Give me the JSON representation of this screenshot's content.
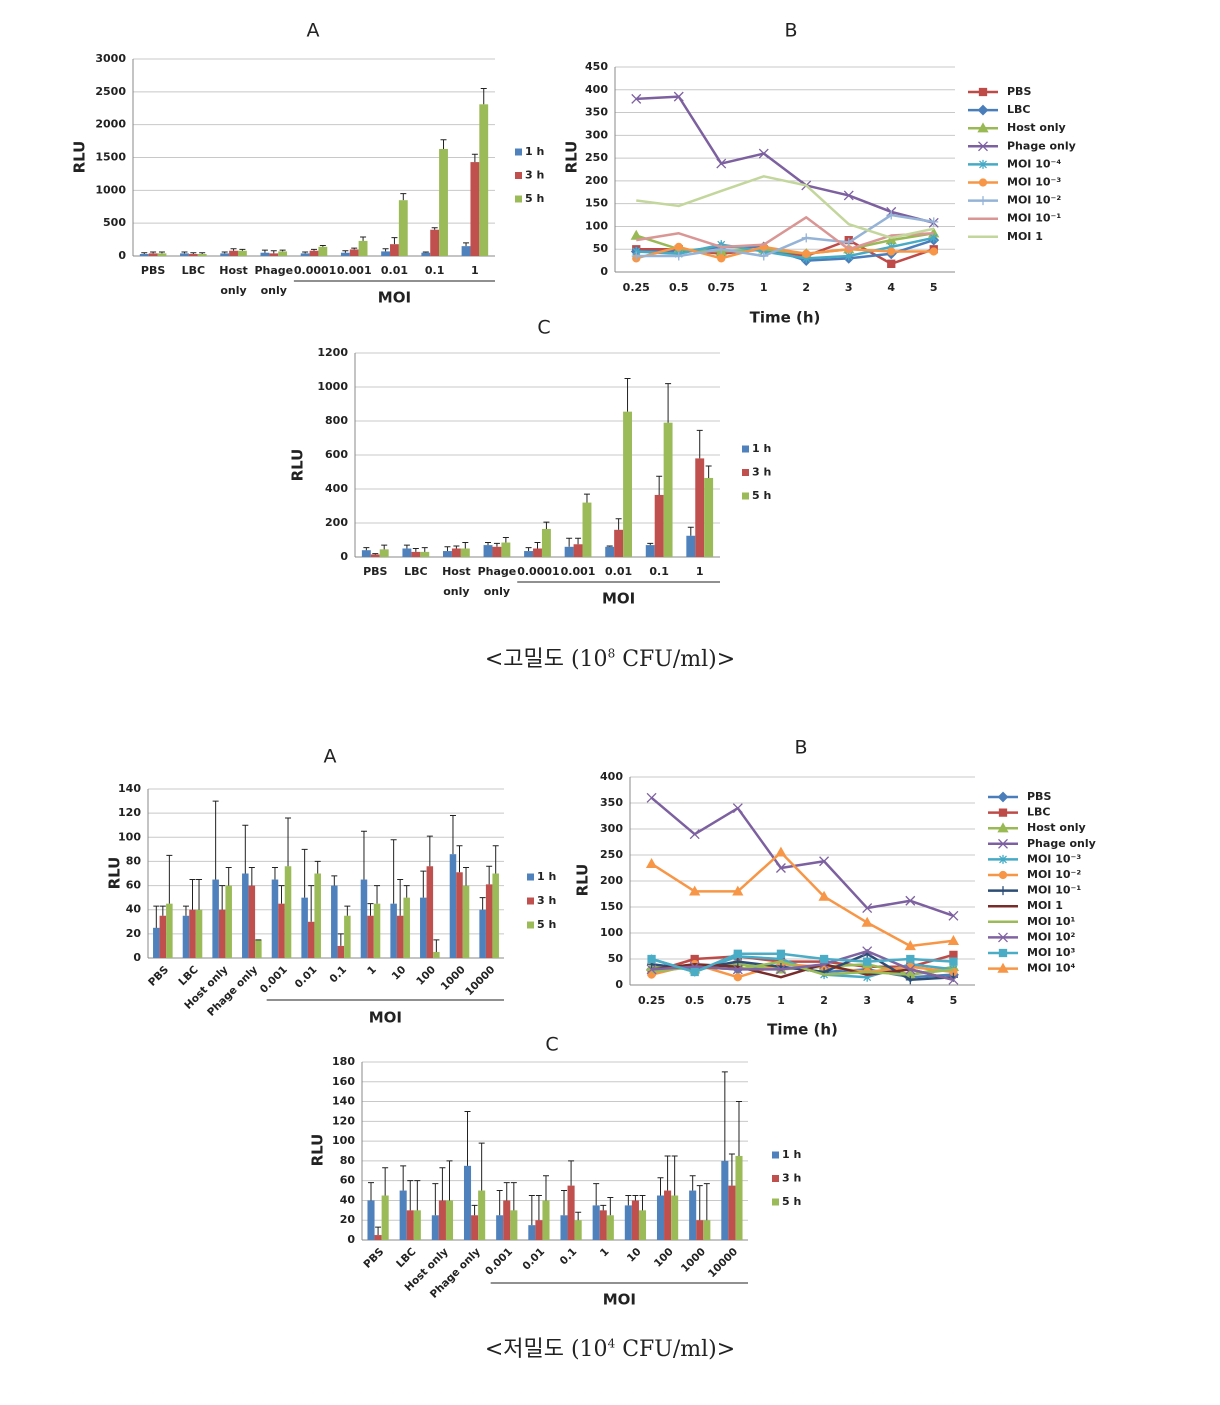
{
  "chart_data": [
    {
      "type": "bar",
      "title": "A",
      "ylabel": "RLU",
      "xlabel": "MOI",
      "categories": [
        "PBS",
        "LBC",
        "Host only",
        "Phage only",
        "0.0001",
        "0.001",
        "0.01",
        "0.1",
        "1"
      ],
      "ylim": [
        0,
        3000
      ],
      "yticks": [
        0,
        500,
        1000,
        1500,
        2000,
        2500,
        3000
      ],
      "grid": true,
      "series": [
        {
          "name": "1 h",
          "color": "#4f81bd",
          "values": [
            30,
            40,
            40,
            50,
            40,
            50,
            70,
            50,
            150
          ],
          "errors": [
            20,
            20,
            20,
            40,
            20,
            30,
            40,
            10,
            50
          ]
        },
        {
          "name": "3 h",
          "color": "#c0504d",
          "values": [
            40,
            30,
            80,
            40,
            80,
            100,
            180,
            400,
            1430
          ],
          "errors": [
            20,
            20,
            30,
            40,
            20,
            20,
            100,
            30,
            120
          ]
        },
        {
          "name": "5 h",
          "color": "#9bbb59",
          "values": [
            40,
            30,
            80,
            70,
            140,
            230,
            850,
            1630,
            2310
          ],
          "errors": [
            20,
            20,
            20,
            20,
            20,
            60,
            100,
            140,
            240
          ]
        }
      ]
    },
    {
      "type": "line",
      "title": "B",
      "ylabel": "RLU",
      "xlabel": "Time (h)",
      "categories": [
        "0.25",
        "0.5",
        "0.75",
        "1",
        "2",
        "3",
        "4",
        "5"
      ],
      "ylim": [
        0,
        450
      ],
      "yticks": [
        0,
        50,
        100,
        150,
        200,
        250,
        300,
        350,
        400,
        450
      ],
      "grid": true,
      "series": [
        {
          "name": "PBS",
          "color": "#be4b48",
          "marker": "square",
          "values": [
            50,
            50,
            40,
            50,
            35,
            70,
            18,
            50
          ]
        },
        {
          "name": "LBC",
          "color": "#4a7ebb",
          "marker": "diamond",
          "values": [
            45,
            45,
            55,
            55,
            25,
            30,
            40,
            70
          ]
        },
        {
          "name": "Host only",
          "color": "#98b954",
          "marker": "triangle",
          "values": [
            80,
            50,
            45,
            50,
            40,
            50,
            70,
            85
          ]
        },
        {
          "name": "Phage only",
          "color": "#7d60a0",
          "marker": "x",
          "values": [
            380,
            385,
            238,
            260,
            190,
            168,
            132,
            108
          ]
        },
        {
          "name": "MOI 10⁻⁴",
          "color": "#46aac5",
          "marker": "asterisk",
          "values": [
            45,
            40,
            60,
            45,
            30,
            35,
            55,
            75
          ]
        },
        {
          "name": "MOI 10⁻³",
          "color": "#f79646",
          "marker": "circle",
          "values": [
            30,
            55,
            30,
            55,
            40,
            50,
            45,
            45
          ]
        },
        {
          "name": "MOI 10⁻²",
          "color": "#95b3d7",
          "marker": "plus",
          "values": [
            35,
            35,
            50,
            35,
            75,
            65,
            125,
            110
          ]
        },
        {
          "name": "MOI 10⁻¹",
          "color": "#d99694",
          "marker": "none",
          "values": [
            70,
            85,
            55,
            60,
            120,
            50,
            80,
            85
          ]
        },
        {
          "name": "MOI 1",
          "color": "#c3d69b",
          "marker": "none",
          "values": [
            157,
            145,
            178,
            210,
            190,
            105,
            75,
            95
          ]
        }
      ]
    },
    {
      "type": "bar",
      "title": "C",
      "ylabel": "RLU",
      "xlabel": "MOI",
      "categories": [
        "PBS",
        "LBC",
        "Host only",
        "Phage only",
        "0.0001",
        "0.001",
        "0.01",
        "0.1",
        "1"
      ],
      "ylim": [
        0,
        1200
      ],
      "yticks": [
        0,
        200,
        400,
        600,
        800,
        1000,
        1200
      ],
      "grid": true,
      "series": [
        {
          "name": "1 h",
          "color": "#4f81bd",
          "values": [
            40,
            50,
            35,
            70,
            35,
            60,
            60,
            70,
            125
          ],
          "errors": [
            15,
            20,
            25,
            15,
            20,
            50,
            5,
            10,
            50
          ]
        },
        {
          "name": "3 h",
          "color": "#c0504d",
          "values": [
            15,
            30,
            50,
            60,
            50,
            75,
            160,
            365,
            580
          ],
          "errors": [
            5,
            20,
            15,
            20,
            35,
            35,
            65,
            110,
            165
          ]
        },
        {
          "name": "5 h",
          "color": "#9bbb59",
          "values": [
            45,
            30,
            50,
            85,
            165,
            320,
            855,
            790,
            465
          ],
          "errors": [
            25,
            25,
            35,
            30,
            40,
            50,
            195,
            230,
            70
          ]
        }
      ]
    },
    {
      "type": "bar",
      "title": "A",
      "ylabel": "RLU",
      "xlabel": "MOI",
      "categories": [
        "PBS",
        "LBC",
        "Host only",
        "Phage only",
        "0.001",
        "0.01",
        "0.1",
        "1",
        "10",
        "100",
        "1000",
        "10000"
      ],
      "ylim": [
        0,
        140
      ],
      "yticks": [
        0,
        20,
        40,
        60,
        80,
        100,
        120,
        140
      ],
      "grid": true,
      "series": [
        {
          "name": "1 h",
          "color": "#4f81bd",
          "values": [
            25,
            35,
            65,
            70,
            65,
            50,
            60,
            65,
            45,
            50,
            86,
            40
          ],
          "errors": [
            18,
            8,
            65,
            40,
            10,
            40,
            8,
            40,
            53,
            22,
            32,
            10
          ]
        },
        {
          "name": "3 h",
          "color": "#c0504d",
          "values": [
            35,
            40,
            40,
            60,
            45,
            30,
            10,
            35,
            35,
            76,
            71,
            61
          ],
          "errors": [
            8,
            25,
            20,
            15,
            15,
            30,
            10,
            10,
            30,
            25,
            22,
            15
          ]
        },
        {
          "name": "5 h",
          "color": "#9bbb59",
          "values": [
            45,
            40,
            60,
            15,
            76,
            70,
            35,
            45,
            50,
            5,
            60,
            70
          ],
          "errors": [
            40,
            25,
            15,
            0,
            40,
            10,
            8,
            15,
            10,
            10,
            15,
            23
          ]
        }
      ]
    },
    {
      "type": "line",
      "title": "B",
      "ylabel": "RLU",
      "xlabel": "Time (h)",
      "categories": [
        "0.25",
        "0.5",
        "0.75",
        "1",
        "2",
        "3",
        "4",
        "5"
      ],
      "ylim": [
        0,
        400
      ],
      "yticks": [
        0,
        50,
        100,
        150,
        200,
        250,
        300,
        350,
        400
      ],
      "grid": true,
      "series": [
        {
          "name": "PBS",
          "color": "#4a7ebb",
          "marker": "diamond",
          "values": [
            30,
            35,
            30,
            35,
            25,
            30,
            15,
            20
          ]
        },
        {
          "name": "LBC",
          "color": "#be4b48",
          "marker": "square",
          "values": [
            25,
            50,
            55,
            45,
            45,
            35,
            35,
            58
          ]
        },
        {
          "name": "Host only",
          "color": "#98b954",
          "marker": "triangle",
          "values": [
            35,
            30,
            40,
            30,
            35,
            40,
            20,
            35
          ]
        },
        {
          "name": "Phage only",
          "color": "#7d60a0",
          "marker": "x",
          "values": [
            360,
            290,
            340,
            225,
            238,
            148,
            162,
            133
          ]
        },
        {
          "name": "MOI 10⁻³",
          "color": "#46aac5",
          "marker": "asterisk",
          "values": [
            50,
            25,
            55,
            50,
            20,
            15,
            40,
            30
          ]
        },
        {
          "name": "MOI 10⁻²",
          "color": "#f79646",
          "marker": "circle",
          "values": [
            20,
            40,
            15,
            40,
            35,
            25,
            35,
            25
          ]
        },
        {
          "name": "MOI 10⁻¹",
          "color": "#2c4d75",
          "marker": "plus",
          "values": [
            40,
            30,
            45,
            35,
            25,
            60,
            10,
            15
          ]
        },
        {
          "name": "MOI 1",
          "color": "#772c2a",
          "marker": "none",
          "values": [
            30,
            40,
            35,
            15,
            40,
            20,
            30,
            10
          ]
        },
        {
          "name": "MOI 10¹",
          "color": "#9bbb59",
          "marker": "none",
          "values": [
            25,
            35,
            30,
            45,
            20,
            25,
            20,
            30
          ]
        },
        {
          "name": "MOI 10²",
          "color": "#8064a2",
          "marker": "x",
          "values": [
            30,
            35,
            30,
            30,
            40,
            65,
            30,
            10
          ]
        },
        {
          "name": "MOI 10³",
          "color": "#4bacc6",
          "marker": "square",
          "values": [
            50,
            25,
            60,
            60,
            50,
            45,
            50,
            45
          ]
        },
        {
          "name": "MOI 10⁴",
          "color": "#f79646",
          "marker": "triangle",
          "values": [
            233,
            180,
            180,
            255,
            170,
            120,
            75,
            85
          ]
        }
      ]
    },
    {
      "type": "bar",
      "title": "C",
      "ylabel": "RLU",
      "xlabel": "MOI",
      "categories": [
        "PBS",
        "LBC",
        "Host only",
        "Phage only",
        "0.001",
        "0.01",
        "0.1",
        "1",
        "10",
        "100",
        "1000",
        "10000"
      ],
      "ylim": [
        0,
        180
      ],
      "yticks": [
        0,
        20,
        40,
        60,
        80,
        100,
        120,
        140,
        160,
        180
      ],
      "grid": true,
      "series": [
        {
          "name": "1 h",
          "color": "#4f81bd",
          "values": [
            40,
            50,
            25,
            75,
            25,
            15,
            25,
            35,
            35,
            45,
            50,
            80
          ],
          "errors": [
            18,
            25,
            32,
            55,
            25,
            30,
            25,
            22,
            10,
            18,
            15,
            90
          ]
        },
        {
          "name": "3 h",
          "color": "#c0504d",
          "values": [
            5,
            30,
            40,
            25,
            40,
            20,
            55,
            30,
            40,
            50,
            20,
            55
          ],
          "errors": [
            8,
            30,
            33,
            10,
            18,
            25,
            25,
            5,
            5,
            35,
            35,
            32
          ]
        },
        {
          "name": "5 h",
          "color": "#9bbb59",
          "values": [
            45,
            30,
            40,
            50,
            30,
            40,
            20,
            25,
            30,
            45,
            20,
            85
          ],
          "errors": [
            28,
            30,
            40,
            48,
            28,
            25,
            8,
            18,
            15,
            40,
            37,
            55
          ]
        }
      ]
    }
  ],
  "captions": [
    {
      "text": "<고밀도 (10",
      "sup": "8",
      "tail": " CFU/ml)>"
    },
    {
      "text": "<저밀도 (10",
      "sup": "4",
      "tail": " CFU/ml)>"
    }
  ]
}
